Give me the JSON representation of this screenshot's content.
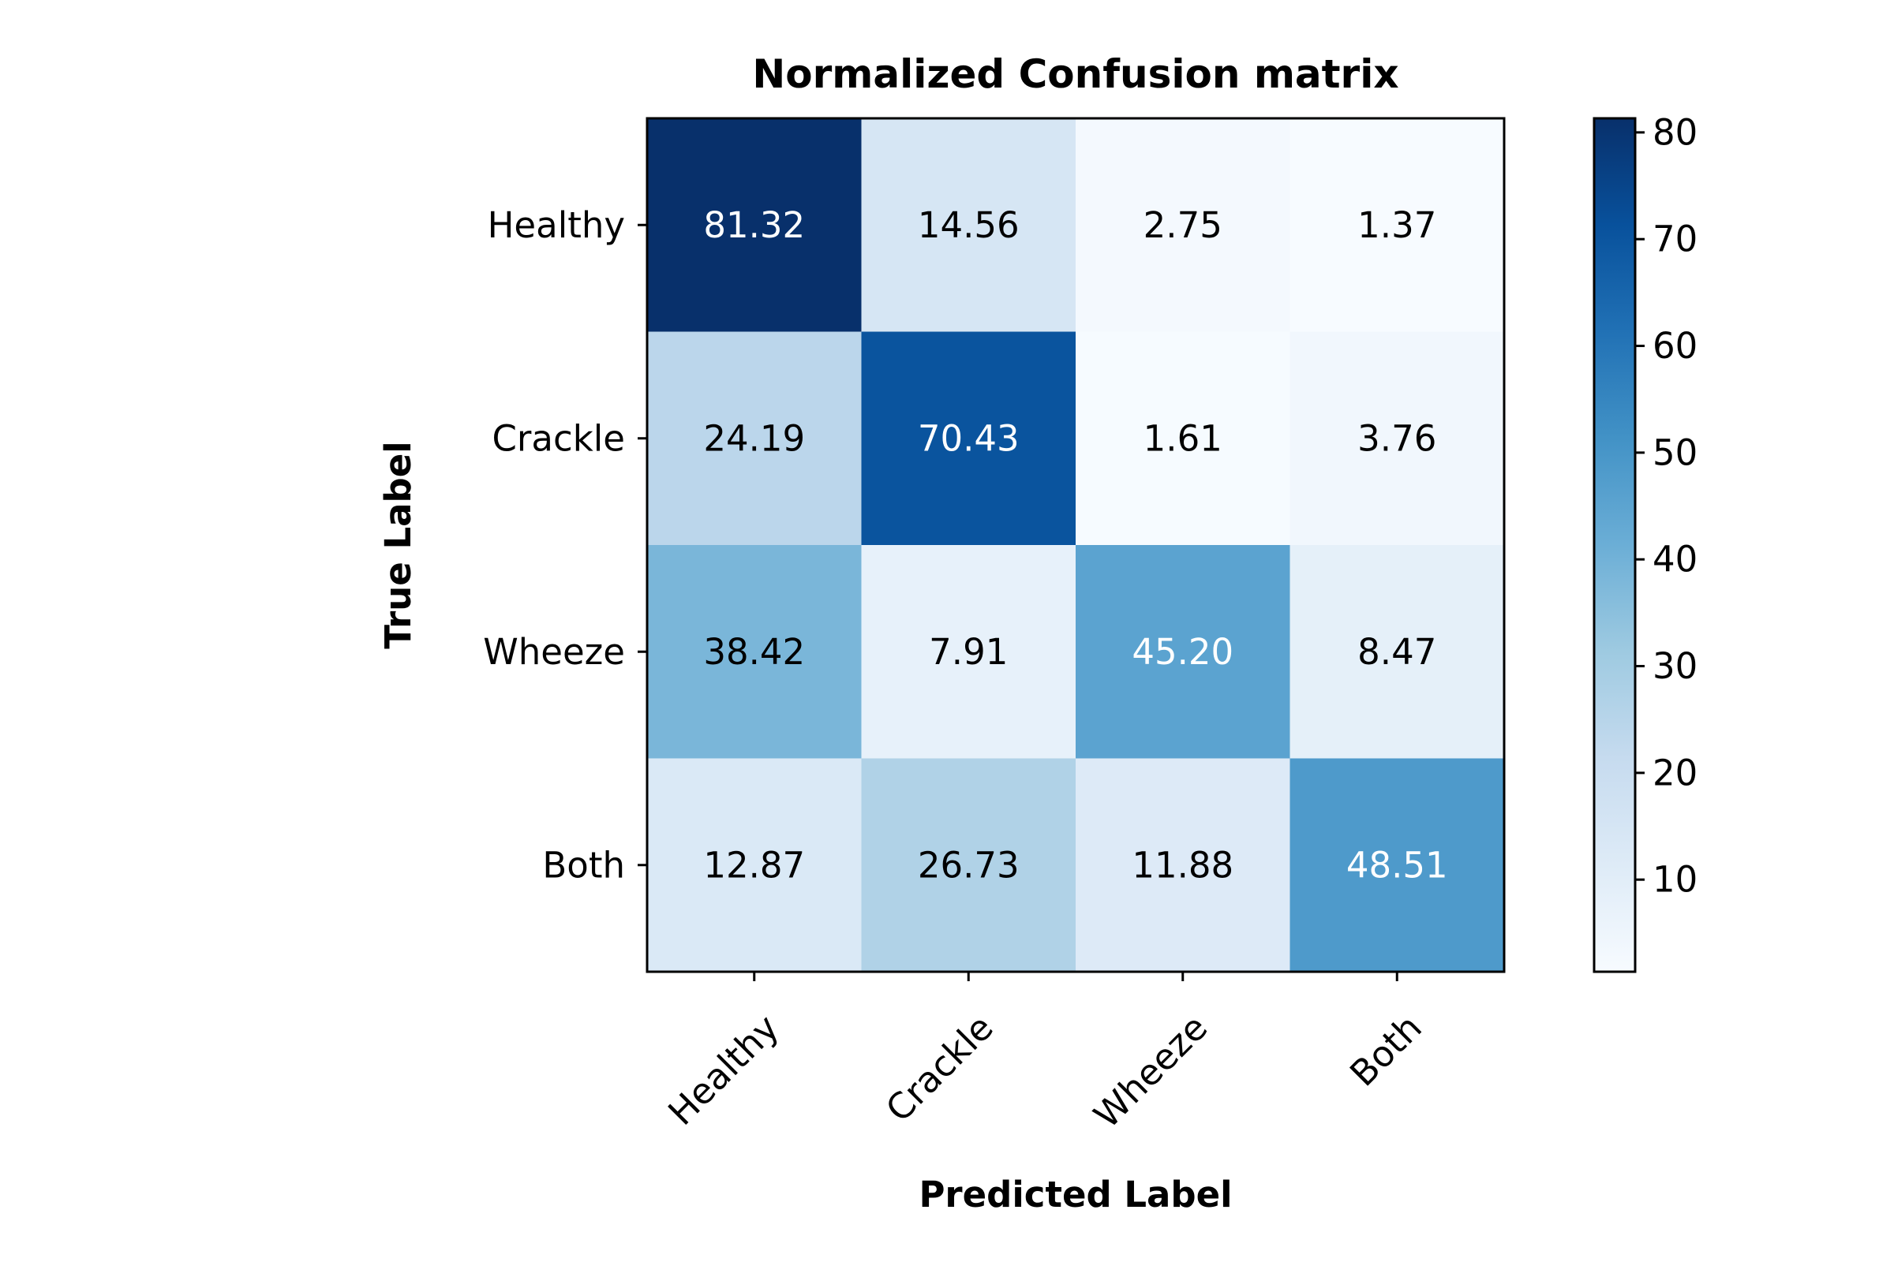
{
  "chart_data": {
    "type": "heatmap",
    "title": "Normalized Confusion matrix",
    "xlabel": "Predicted Label",
    "ylabel": "True Label",
    "x_categories": [
      "Healthy",
      "Crackle",
      "Wheeze",
      "Both"
    ],
    "y_categories": [
      "Healthy",
      "Crackle",
      "Wheeze",
      "Both"
    ],
    "values": [
      [
        81.32,
        14.56,
        2.75,
        1.37
      ],
      [
        24.19,
        70.43,
        1.61,
        3.76
      ],
      [
        38.42,
        7.91,
        45.2,
        8.47
      ],
      [
        12.87,
        26.73,
        11.88,
        48.51
      ]
    ],
    "value_labels": [
      [
        "81.32",
        "14.56",
        "2.75",
        "1.37"
      ],
      [
        "24.19",
        "70.43",
        "1.61",
        "3.76"
      ],
      [
        "38.42",
        "7.91",
        "45.20",
        "8.47"
      ],
      [
        "12.87",
        "26.73",
        "11.88",
        "48.51"
      ]
    ],
    "colormap": "Blues",
    "colorbar": {
      "range": [
        1.37,
        81.32
      ],
      "ticks": [
        10,
        20,
        30,
        40,
        50,
        60,
        70,
        80
      ]
    },
    "label_colors": {
      "light": "#ffffff",
      "dark": "#000000"
    }
  }
}
